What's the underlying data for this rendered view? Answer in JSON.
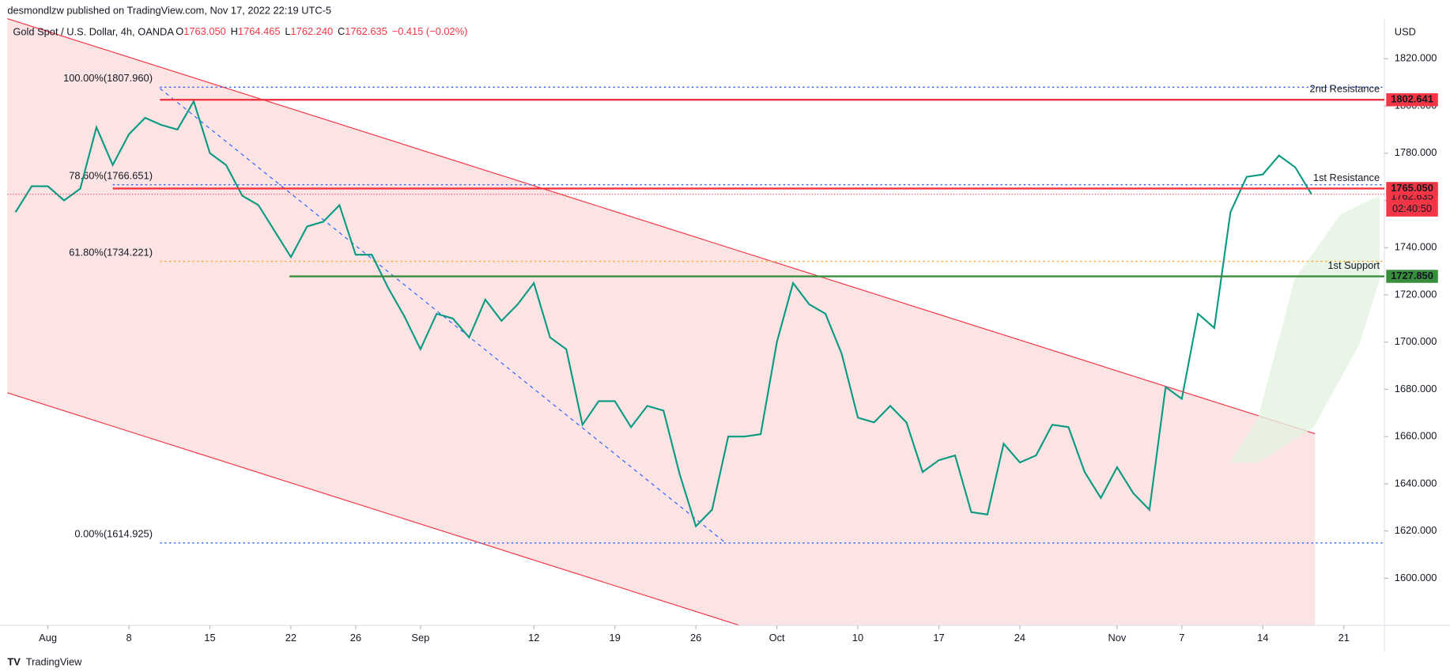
{
  "header": {
    "publisher": "desmondlzw published on TradingView.com, Nov 17, 2022 22:19 UTC-5",
    "footer": "TradingView"
  },
  "chart_data": {
    "type": "line",
    "title": "Gold Spot / U.S. Dollar, 4h, OANDA",
    "ohlc": [
      [
        "O",
        "1763.050"
      ],
      [
        "H",
        "1764.465"
      ],
      [
        "L",
        "1762.240"
      ],
      [
        "C",
        "1762.635"
      ]
    ],
    "change": "−0.415 (−0.02%)",
    "currency": "USD",
    "x": [
      "2022-07-28",
      "2022-07-29",
      "2022-08-01",
      "2022-08-02",
      "2022-08-03",
      "2022-08-04",
      "2022-08-05",
      "2022-08-08",
      "2022-08-09",
      "2022-08-10",
      "2022-08-11",
      "2022-08-12",
      "2022-08-15",
      "2022-08-16",
      "2022-08-17",
      "2022-08-18",
      "2022-08-19",
      "2022-08-22",
      "2022-08-23",
      "2022-08-24",
      "2022-08-25",
      "2022-08-26",
      "2022-08-29",
      "2022-08-30",
      "2022-08-31",
      "2022-09-01",
      "2022-09-02",
      "2022-09-05",
      "2022-09-06",
      "2022-09-07",
      "2022-09-08",
      "2022-09-09",
      "2022-09-12",
      "2022-09-13",
      "2022-09-14",
      "2022-09-15",
      "2022-09-16",
      "2022-09-19",
      "2022-09-20",
      "2022-09-21",
      "2022-09-22",
      "2022-09-23",
      "2022-09-26",
      "2022-09-27",
      "2022-09-28",
      "2022-09-29",
      "2022-09-30",
      "2022-10-03",
      "2022-10-04",
      "2022-10-05",
      "2022-10-06",
      "2022-10-07",
      "2022-10-10",
      "2022-10-11",
      "2022-10-12",
      "2022-10-13",
      "2022-10-14",
      "2022-10-17",
      "2022-10-18",
      "2022-10-19",
      "2022-10-20",
      "2022-10-21",
      "2022-10-24",
      "2022-10-25",
      "2022-10-26",
      "2022-10-27",
      "2022-10-28",
      "2022-10-31",
      "2022-11-01",
      "2022-11-02",
      "2022-11-03",
      "2022-11-04",
      "2022-11-07",
      "2022-11-08",
      "2022-11-09",
      "2022-11-10",
      "2022-11-11",
      "2022-11-14",
      "2022-11-15",
      "2022-11-16",
      "2022-11-17"
    ],
    "values": [
      1755,
      1766,
      1766,
      1760,
      1765,
      1791,
      1775,
      1788,
      1795,
      1792,
      1790,
      1802,
      1780,
      1775,
      1762,
      1758,
      1747,
      1736,
      1749,
      1751,
      1758,
      1737,
      1737,
      1723,
      1711,
      1697,
      1712,
      1710,
      1702,
      1718,
      1709,
      1716,
      1725,
      1702,
      1697,
      1665,
      1675,
      1675,
      1664,
      1673,
      1671,
      1644,
      1622,
      1629,
      1660,
      1660,
      1661,
      1700,
      1725,
      1716,
      1712,
      1695,
      1668,
      1666,
      1673,
      1666,
      1645,
      1650,
      1652,
      1628,
      1627,
      1657,
      1649,
      1652,
      1665,
      1664,
      1645,
      1634,
      1647,
      1636,
      1629,
      1681,
      1676,
      1712,
      1706,
      1755,
      1770,
      1771,
      1779,
      1774,
      1762.635
    ],
    "color": "#089981",
    "xlim": [
      "2022-07-28",
      "2022-11-24"
    ],
    "xticks": [
      {
        "value": "2022-08-01",
        "label": "Aug"
      },
      {
        "value": "2022-08-08",
        "label": "8"
      },
      {
        "value": "2022-08-15",
        "label": "15"
      },
      {
        "value": "2022-08-22",
        "label": "22"
      },
      {
        "value": "2022-08-26",
        "label": "26"
      },
      {
        "value": "2022-09-01",
        "label": "Sep"
      },
      {
        "value": "2022-09-12",
        "label": "12"
      },
      {
        "value": "2022-09-19",
        "label": "19"
      },
      {
        "value": "2022-09-26",
        "label": "26"
      },
      {
        "value": "2022-10-03",
        "label": "Oct"
      },
      {
        "value": "2022-10-10",
        "label": "10"
      },
      {
        "value": "2022-10-17",
        "label": "17"
      },
      {
        "value": "2022-10-24",
        "label": "24"
      },
      {
        "value": "2022-11-01",
        "label": "Nov"
      },
      {
        "value": "2022-11-07",
        "label": "7"
      },
      {
        "value": "2022-11-14",
        "label": "14"
      },
      {
        "value": "2022-11-21",
        "label": "21"
      }
    ],
    "ylim": [
      1580,
      1837
    ],
    "yticks": [
      {
        "value": 1600,
        "label": "1600.000"
      },
      {
        "value": 1620,
        "label": "1620.000"
      },
      {
        "value": 1640,
        "label": "1640.000"
      },
      {
        "value": 1660,
        "label": "1660.000"
      },
      {
        "value": 1680,
        "label": "1680.000"
      },
      {
        "value": 1700,
        "label": "1700.000"
      },
      {
        "value": 1720,
        "label": "1720.000"
      },
      {
        "value": 1740,
        "label": "1740.000"
      },
      {
        "value": 1760,
        "label": "1760.000"
      },
      {
        "value": 1780,
        "label": "1780.000"
      },
      {
        "value": 1800,
        "label": "1800.000"
      },
      {
        "value": 1820,
        "label": "1820.000"
      }
    ],
    "grid": false,
    "levels": [
      {
        "label": "2nd Resistance",
        "price": 1802.641,
        "price_label": "1802.641",
        "color": "#f23645"
      },
      {
        "label": "1st Resistance",
        "price": 1765.05,
        "price_label": "1765.050",
        "color": "#f23645"
      },
      {
        "label": "1st Support",
        "price": 1727.85,
        "price_label": "1727.850",
        "color": "#388e3c"
      }
    ],
    "fib_levels": [
      {
        "label": "100.00%(1807.960)",
        "price": 1807.96,
        "color": "#2962ff"
      },
      {
        "label": "78.60%(1766.651)",
        "price": 1766.651,
        "color": "#2962ff"
      },
      {
        "label": "61.80%(1734.221)",
        "price": 1734.221,
        "color": "#f9a825"
      },
      {
        "label": "0.00%(1614.925)",
        "price": 1614.925,
        "color": "#2962ff"
      }
    ],
    "last_price": {
      "value": 1762.635,
      "countdown": "02:40:50",
      "color": "#f23645"
    }
  }
}
